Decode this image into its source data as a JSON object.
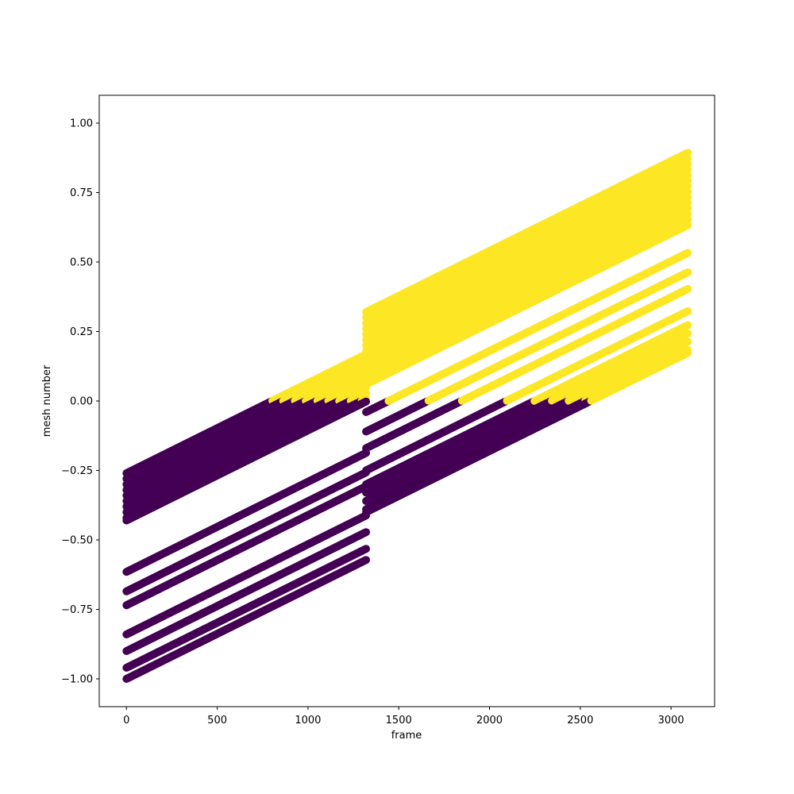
{
  "chart_data": {
    "type": "scatter",
    "title": "",
    "xlabel": "frame",
    "ylabel": "mesh number",
    "xlim": [
      -150,
      3240
    ],
    "ylim": [
      -1.1,
      1.1
    ],
    "xticks": [
      0,
      500,
      1000,
      1500,
      2000,
      2500,
      3000
    ],
    "xtick_labels": [
      "0",
      "500",
      "1000",
      "1500",
      "2000",
      "2500",
      "3000"
    ],
    "yticks": [
      -1.0,
      -0.75,
      -0.5,
      -0.25,
      0.0,
      0.25,
      0.5,
      0.75,
      1.0
    ],
    "ytick_labels": [
      "−1.00",
      "−0.75",
      "−0.50",
      "−0.25",
      "0.00",
      "0.25",
      "0.50",
      "0.75",
      "1.00"
    ],
    "grid": false,
    "legend": "none",
    "colors": {
      "negative": "#440154",
      "positive": "#fde725"
    },
    "color_rule": "points with mesh number below 0 are dark purple, at or above 0 are yellow",
    "x_step": 4,
    "slope_per_frame": 0.000324,
    "series": [
      {
        "x_start": 0,
        "x_end": 1320,
        "y_start": -0.26,
        "y_end": 0.168
      },
      {
        "x_start": 0,
        "x_end": 1320,
        "y_start": -0.28,
        "y_end": 0.148
      },
      {
        "x_start": 0,
        "x_end": 1320,
        "y_start": -0.3,
        "y_end": 0.128
      },
      {
        "x_start": 0,
        "x_end": 1320,
        "y_start": -0.32,
        "y_end": 0.108
      },
      {
        "x_start": 0,
        "x_end": 1320,
        "y_start": -0.34,
        "y_end": 0.088
      },
      {
        "x_start": 0,
        "x_end": 1320,
        "y_start": -0.36,
        "y_end": 0.068
      },
      {
        "x_start": 0,
        "x_end": 1320,
        "y_start": -0.38,
        "y_end": 0.048
      },
      {
        "x_start": 0,
        "x_end": 1320,
        "y_start": -0.4,
        "y_end": 0.028
      },
      {
        "x_start": 0,
        "x_end": 1320,
        "y_start": -0.42,
        "y_end": 0.008
      },
      {
        "x_start": 0,
        "x_end": 1320,
        "y_start": -0.43,
        "y_end": -0.002
      },
      {
        "x_start": 0,
        "x_end": 1320,
        "y_start": -0.615,
        "y_end": -0.187
      },
      {
        "x_start": 0,
        "x_end": 1320,
        "y_start": -0.685,
        "y_end": -0.257
      },
      {
        "x_start": 0,
        "x_end": 1320,
        "y_start": -0.735,
        "y_end": -0.307
      },
      {
        "x_start": 0,
        "x_end": 1320,
        "y_start": -0.84,
        "y_end": -0.412
      },
      {
        "x_start": 0,
        "x_end": 1320,
        "y_start": -0.9,
        "y_end": -0.472
      },
      {
        "x_start": 0,
        "x_end": 1320,
        "y_start": -0.96,
        "y_end": -0.532
      },
      {
        "x_start": 0,
        "x_end": 1320,
        "y_start": -1.0,
        "y_end": -0.572
      },
      {
        "x_start": 1320,
        "x_end": 3090,
        "y_start": 0.32,
        "y_end": 0.893
      },
      {
        "x_start": 1320,
        "x_end": 3090,
        "y_start": 0.3,
        "y_end": 0.873
      },
      {
        "x_start": 1320,
        "x_end": 3090,
        "y_start": 0.28,
        "y_end": 0.853
      },
      {
        "x_start": 1320,
        "x_end": 3090,
        "y_start": 0.26,
        "y_end": 0.833
      },
      {
        "x_start": 1320,
        "x_end": 3090,
        "y_start": 0.24,
        "y_end": 0.813
      },
      {
        "x_start": 1320,
        "x_end": 3090,
        "y_start": 0.22,
        "y_end": 0.793
      },
      {
        "x_start": 1320,
        "x_end": 3090,
        "y_start": 0.2,
        "y_end": 0.773
      },
      {
        "x_start": 1320,
        "x_end": 3090,
        "y_start": 0.18,
        "y_end": 0.753
      },
      {
        "x_start": 1320,
        "x_end": 3090,
        "y_start": 0.16,
        "y_end": 0.733
      },
      {
        "x_start": 1320,
        "x_end": 3090,
        "y_start": 0.14,
        "y_end": 0.713
      },
      {
        "x_start": 1320,
        "x_end": 3090,
        "y_start": 0.12,
        "y_end": 0.693
      },
      {
        "x_start": 1320,
        "x_end": 3090,
        "y_start": 0.1,
        "y_end": 0.673
      },
      {
        "x_start": 1320,
        "x_end": 3090,
        "y_start": 0.08,
        "y_end": 0.653
      },
      {
        "x_start": 1320,
        "x_end": 3090,
        "y_start": 0.06,
        "y_end": 0.633
      },
      {
        "x_start": 1320,
        "x_end": 3090,
        "y_start": 0.06,
        "y_end": 0.633
      },
      {
        "x_start": 1320,
        "x_end": 3090,
        "y_start": -0.04,
        "y_end": 0.533
      },
      {
        "x_start": 1320,
        "x_end": 3090,
        "y_start": -0.11,
        "y_end": 0.463
      },
      {
        "x_start": 1320,
        "x_end": 3090,
        "y_start": -0.17,
        "y_end": 0.403
      },
      {
        "x_start": 1320,
        "x_end": 3090,
        "y_start": -0.25,
        "y_end": 0.323
      },
      {
        "x_start": 1320,
        "x_end": 3090,
        "y_start": -0.3,
        "y_end": 0.273
      },
      {
        "x_start": 1320,
        "x_end": 3090,
        "y_start": -0.33,
        "y_end": 0.243
      },
      {
        "x_start": 1320,
        "x_end": 3090,
        "y_start": -0.36,
        "y_end": 0.213
      },
      {
        "x_start": 1320,
        "x_end": 3090,
        "y_start": -0.39,
        "y_end": 0.183
      },
      {
        "x_start": 1320,
        "x_end": 3090,
        "y_start": -0.4,
        "y_end": 0.173
      }
    ]
  }
}
